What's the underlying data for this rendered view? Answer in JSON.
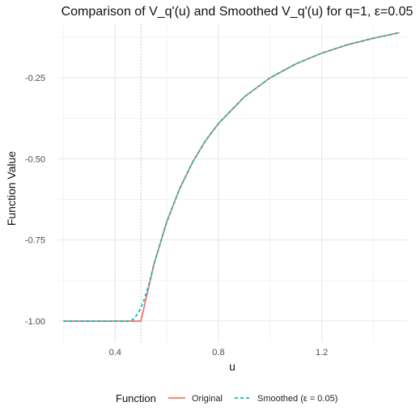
{
  "chart_data": {
    "type": "line",
    "title": "Comparison of V_q'(u) and Smoothed V_q'(u) for q=1, ε=0.05",
    "xlabel": "u",
    "ylabel": "Function Value",
    "xlim": [
      0.18,
      1.53
    ],
    "ylim": [
      -1.065,
      -0.085
    ],
    "x_ticks": [
      0.4,
      0.8,
      1.2
    ],
    "y_ticks": [
      -1.0,
      -0.75,
      -0.5,
      -0.25
    ],
    "x_tick_labels": [
      "0.4",
      "0.8",
      "1.2"
    ],
    "y_tick_labels": [
      "-1.00",
      "-0.75",
      "-0.50",
      "-0.25"
    ],
    "grid": true,
    "vline": 0.5,
    "legend_title": "Function",
    "legend_position": "bottom",
    "series": [
      {
        "name": "Original",
        "color": "#F8766D",
        "style": "solid",
        "x": [
          0.2,
          0.5,
          0.5,
          0.55,
          0.6,
          0.65,
          0.7,
          0.75,
          0.8,
          0.9,
          1.0,
          1.1,
          1.2,
          1.3,
          1.4,
          1.5
        ],
        "y": [
          -1.0,
          -1.0,
          -1.0,
          -0.826,
          -0.694,
          -0.592,
          -0.51,
          -0.444,
          -0.391,
          -0.309,
          -0.25,
          -0.207,
          -0.174,
          -0.148,
          -0.128,
          -0.111
        ]
      },
      {
        "name": "Smoothed (ε = 0.05)",
        "color": "#00BFC4",
        "style": "dashed",
        "x": [
          0.2,
          0.45,
          0.47,
          0.49,
          0.51,
          0.53,
          0.55,
          0.6,
          0.65,
          0.7,
          0.75,
          0.8,
          0.9,
          1.0,
          1.1,
          1.2,
          1.3,
          1.4,
          1.5
        ],
        "y": [
          -1.0,
          -1.0,
          -0.995,
          -0.975,
          -0.94,
          -0.89,
          -0.826,
          -0.694,
          -0.592,
          -0.51,
          -0.444,
          -0.391,
          -0.309,
          -0.25,
          -0.207,
          -0.174,
          -0.148,
          -0.128,
          -0.111
        ]
      }
    ]
  }
}
